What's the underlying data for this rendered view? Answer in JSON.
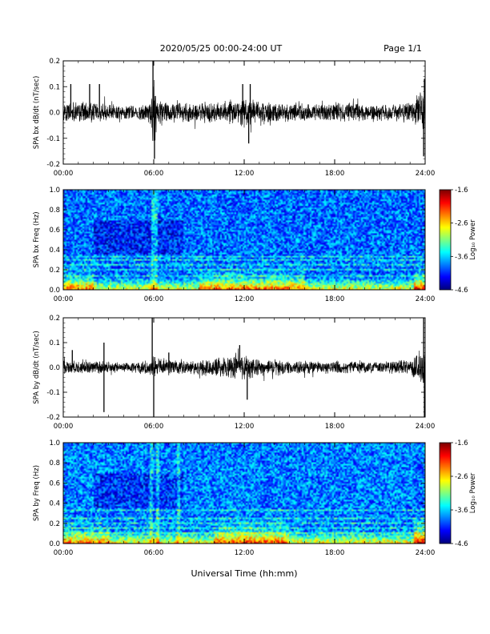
{
  "header": {
    "title": "2020/05/25  00:00-24:00 UT",
    "page": "Page 1/1"
  },
  "footer": {
    "xlabel": "Universal Time (hh:mm)"
  },
  "time_ticks": [
    "00:00",
    "06:00",
    "12:00",
    "18:00",
    "24:00"
  ],
  "colorbar": {
    "label": "Log₁₀ Power",
    "ticks": [
      "-1.6",
      "-2.6",
      "-3.6",
      "-4.6"
    ],
    "range": [
      -4.6,
      -1.6
    ]
  },
  "chart_data": [
    {
      "type": "line",
      "ylabel": "SPA bx dB/dt (nT/sec)",
      "xlim": [
        0,
        24
      ],
      "ylim": [
        -0.2,
        0.2
      ],
      "yticks": [
        "0.2",
        "0.1",
        "0.0",
        "-0.1",
        "-0.2"
      ],
      "series": [
        {
          "x_hours": [
            0,
            1,
            2,
            3,
            4,
            5,
            5.8,
            6,
            6.2,
            7,
            8,
            9,
            10,
            11,
            12,
            13,
            14,
            15,
            16,
            17,
            18,
            19,
            20,
            21,
            22,
            23,
            23.6,
            24
          ],
          "amplitude": [
            0.04,
            0.045,
            0.045,
            0.04,
            0.03,
            0.03,
            0.05,
            0.2,
            0.06,
            0.045,
            0.04,
            0.045,
            0.045,
            0.05,
            0.055,
            0.05,
            0.045,
            0.04,
            0.04,
            0.035,
            0.04,
            0.04,
            0.035,
            0.035,
            0.035,
            0.045,
            0.08,
            0.1
          ],
          "spikes": [
            {
              "t": 0.5,
              "v": 0.11
            },
            {
              "t": 1.75,
              "v": 0.11
            },
            {
              "t": 2.4,
              "v": 0.11
            },
            {
              "t": 5.95,
              "v": 0.2
            },
            {
              "t": 6.05,
              "v": -0.18
            },
            {
              "t": 11.9,
              "v": 0.11
            },
            {
              "t": 12.3,
              "v": -0.12
            },
            {
              "t": 12.4,
              "v": 0.11
            },
            {
              "t": 23.9,
              "v": -0.17
            },
            {
              "t": 23.95,
              "v": 0.13
            }
          ]
        }
      ]
    },
    {
      "type": "heatmap",
      "ylabel": "SPA bx Freq (Hz)",
      "xlim": [
        0,
        24
      ],
      "ylim": [
        0.0,
        1.0
      ],
      "yticks": [
        "1.0",
        "0.8",
        "0.6",
        "0.4",
        "0.2",
        "0.0"
      ],
      "zrange": [
        -4.6,
        -1.6
      ],
      "base_level": -3.9,
      "bands_hz": [
        0.13,
        0.19,
        0.25,
        0.3,
        0.33
      ],
      "vertical_lines_hours": [
        5.95,
        6.1
      ],
      "low_freq_boost_hours": [
        [
          0,
          2,
          0.5
        ],
        [
          9,
          16,
          0.5
        ],
        [
          23.3,
          24,
          0.8
        ]
      ]
    },
    {
      "type": "line",
      "ylabel": "SPA by dB/dt (nT/sec)",
      "xlim": [
        0,
        24
      ],
      "ylim": [
        -0.2,
        0.2
      ],
      "yticks": [
        "0.2",
        "0.1",
        "0.0",
        "-0.1",
        "-0.2"
      ],
      "series": [
        {
          "x_hours": [
            0,
            1,
            2,
            3,
            4,
            5,
            5.8,
            6,
            6.2,
            7,
            8,
            9,
            10,
            11,
            12,
            13,
            14,
            15,
            16,
            17,
            18,
            19,
            20,
            21,
            22,
            23,
            23.6,
            24
          ],
          "amplitude": [
            0.03,
            0.03,
            0.03,
            0.025,
            0.02,
            0.025,
            0.04,
            0.07,
            0.04,
            0.035,
            0.03,
            0.035,
            0.04,
            0.05,
            0.055,
            0.04,
            0.035,
            0.03,
            0.03,
            0.025,
            0.03,
            0.03,
            0.025,
            0.025,
            0.03,
            0.035,
            0.07,
            0.1
          ],
          "spikes": [
            {
              "t": 0.6,
              "v": 0.07
            },
            {
              "t": 2.7,
              "v": 0.1
            },
            {
              "t": 2.7,
              "v": -0.18
            },
            {
              "t": 5.9,
              "v": 0.2
            },
            {
              "t": 6.0,
              "v": -0.2
            },
            {
              "t": 7.0,
              "v": 0.06
            },
            {
              "t": 11.7,
              "v": 0.09
            },
            {
              "t": 12.2,
              "v": -0.13
            },
            {
              "t": 23.9,
              "v": 0.2
            },
            {
              "t": 23.95,
              "v": -0.2
            }
          ]
        }
      ]
    },
    {
      "type": "heatmap",
      "ylabel": "SPA by Freq (Hz)",
      "xlim": [
        0,
        24
      ],
      "ylim": [
        0.0,
        1.0
      ],
      "yticks": [
        "1.0",
        "0.8",
        "0.6",
        "0.4",
        "0.2",
        "0.0"
      ],
      "zrange": [
        -4.6,
        -1.6
      ],
      "base_level": -3.85,
      "bands_hz": [
        0.1,
        0.15,
        0.2,
        0.25,
        0.32
      ],
      "vertical_lines_hours": [
        5.8,
        6.2,
        7.6
      ],
      "low_freq_boost_hours": [
        [
          0,
          3,
          0.4
        ],
        [
          10,
          15,
          0.6
        ],
        [
          23.3,
          24,
          0.9
        ]
      ]
    }
  ]
}
